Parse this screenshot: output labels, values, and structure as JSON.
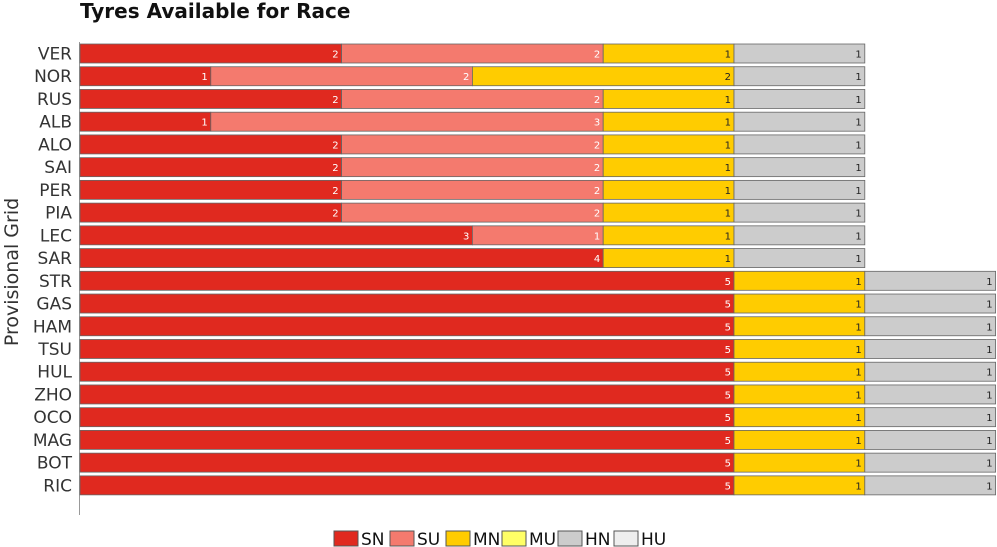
{
  "chart_data": {
    "type": "bar",
    "orientation": "horizontal",
    "stacked": true,
    "title": "Tyres Available for Race",
    "xlabel": "",
    "ylabel": "Provisional Grid",
    "categories": [
      "VER",
      "NOR",
      "RUS",
      "ALB",
      "ALO",
      "SAI",
      "PER",
      "PIA",
      "LEC",
      "SAR",
      "STR",
      "GAS",
      "HAM",
      "TSU",
      "HUL",
      "ZHO",
      "OCO",
      "MAG",
      "BOT",
      "RIC"
    ],
    "xlim": [
      0,
      7
    ],
    "grid": false,
    "legend_position": "bottom",
    "series": [
      {
        "name": "SN",
        "color": "#e0291f",
        "values": [
          2,
          1,
          2,
          1,
          2,
          2,
          2,
          2,
          3,
          4,
          5,
          5,
          5,
          5,
          5,
          5,
          5,
          5,
          5,
          5
        ]
      },
      {
        "name": "SU",
        "color": "#f47a6e",
        "values": [
          2,
          2,
          2,
          3,
          2,
          2,
          2,
          2,
          1,
          0,
          0,
          0,
          0,
          0,
          0,
          0,
          0,
          0,
          0,
          0
        ]
      },
      {
        "name": "MN",
        "color": "#ffcc00",
        "values": [
          1,
          2,
          1,
          1,
          1,
          1,
          1,
          1,
          1,
          1,
          1,
          1,
          1,
          1,
          1,
          1,
          1,
          1,
          1,
          1
        ]
      },
      {
        "name": "MU",
        "color": "#ffff66",
        "values": [
          0,
          0,
          0,
          0,
          0,
          0,
          0,
          0,
          0,
          0,
          0,
          0,
          0,
          0,
          0,
          0,
          0,
          0,
          0,
          0
        ]
      },
      {
        "name": "HN",
        "color": "#cccccc",
        "values": [
          1,
          1,
          1,
          1,
          1,
          1,
          1,
          1,
          1,
          1,
          1,
          1,
          1,
          1,
          1,
          1,
          1,
          1,
          1,
          1
        ]
      },
      {
        "name": "HU",
        "color": "#eeeeee",
        "values": [
          0,
          0,
          0,
          0,
          0,
          0,
          0,
          0,
          0,
          0,
          0,
          0,
          0,
          0,
          0,
          0,
          0,
          0,
          0,
          0
        ]
      }
    ]
  }
}
